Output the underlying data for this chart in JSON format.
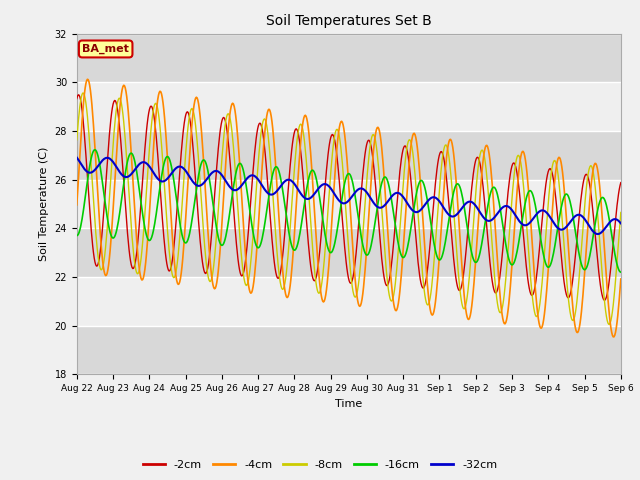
{
  "title": "Soil Temperatures Set B",
  "xlabel": "Time",
  "ylabel": "Soil Temperature (C)",
  "ylim": [
    18,
    32
  ],
  "yticks": [
    18,
    20,
    22,
    24,
    26,
    28,
    30,
    32
  ],
  "date_labels": [
    "Aug 22",
    "Aug 23",
    "Aug 24",
    "Aug 25",
    "Aug 26",
    "Aug 27",
    "Aug 28",
    "Aug 29",
    "Aug 30",
    "Aug 31",
    "Sep 1",
    "Sep 2",
    "Sep 3",
    "Sep 4",
    "Sep 5",
    "Sep 6"
  ],
  "colors": {
    "-2cm": "#cc0000",
    "-4cm": "#ff8800",
    "-8cm": "#cccc00",
    "-16cm": "#00cc00",
    "-32cm": "#0000cc"
  },
  "legend_labels": [
    "-2cm",
    "-4cm",
    "-8cm",
    "-16cm",
    "-32cm"
  ],
  "annotation_text": "BA_met",
  "annotation_box_color": "#ffff99",
  "annotation_border_color": "#cc0000",
  "plot_bg_color": "#d8d8d8",
  "fig_bg_color": "#f0f0f0",
  "n_days": 15,
  "samples_per_day": 48
}
